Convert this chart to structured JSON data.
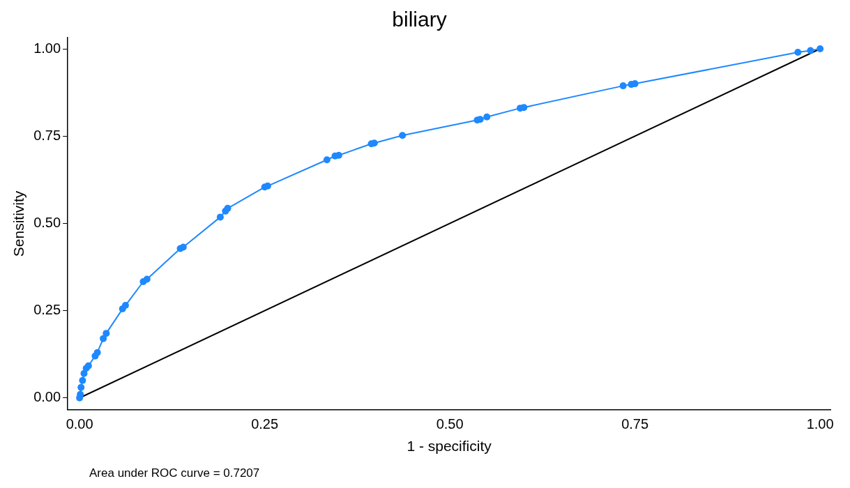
{
  "chart_data": {
    "type": "line",
    "title": "biliary",
    "xlabel": "1 - specificity",
    "ylabel": "Sensitivity",
    "annotations": [
      "Area under ROC curve = 0.7207"
    ],
    "xlim": [
      -0.016,
      1.014
    ],
    "ylim": [
      -0.034,
      1.032
    ],
    "xticks": [
      {
        "value": 0,
        "label": "0.00"
      },
      {
        "value": 0.25,
        "label": "0.25"
      },
      {
        "value": 0.5,
        "label": "0.50"
      },
      {
        "value": 0.75,
        "label": "0.75"
      },
      {
        "value": 1,
        "label": "1.00"
      }
    ],
    "yticks": [
      {
        "value": 0,
        "label": "0.00"
      },
      {
        "value": 0.25,
        "label": "0.25"
      },
      {
        "value": 0.5,
        "label": "0.50"
      },
      {
        "value": 0.75,
        "label": "0.75"
      },
      {
        "value": 1,
        "label": "1.00"
      }
    ],
    "grid": false,
    "legend": false,
    "series": [
      {
        "color": "#1e88ff",
        "marker": "circle",
        "x": [
          0,
          0.001,
          0.002,
          0.004,
          0.006,
          0.009,
          0.012,
          0.021,
          0.024,
          0.032,
          0.036,
          0.058,
          0.062,
          0.086,
          0.091,
          0.136,
          0.14,
          0.19,
          0.197,
          0.2,
          0.25,
          0.254,
          0.334,
          0.345,
          0.35,
          0.394,
          0.398,
          0.436,
          0.537,
          0.541,
          0.55,
          0.595,
          0.6,
          0.734,
          0.745,
          0.75,
          0.97,
          0.987,
          1
        ],
        "values": [
          0,
          0.01,
          0.03,
          0.05,
          0.07,
          0.085,
          0.092,
          0.12,
          0.13,
          0.17,
          0.185,
          0.255,
          0.265,
          0.333,
          0.34,
          0.428,
          0.432,
          0.518,
          0.535,
          0.543,
          0.604,
          0.607,
          0.682,
          0.693,
          0.695,
          0.728,
          0.73,
          0.752,
          0.796,
          0.798,
          0.805,
          0.83,
          0.832,
          0.894,
          0.898,
          0.9,
          0.99,
          0.995,
          1
        ]
      },
      {
        "color": "#000000",
        "marker": "none",
        "x": [
          0,
          1
        ],
        "values": [
          0,
          1
        ]
      }
    ]
  }
}
